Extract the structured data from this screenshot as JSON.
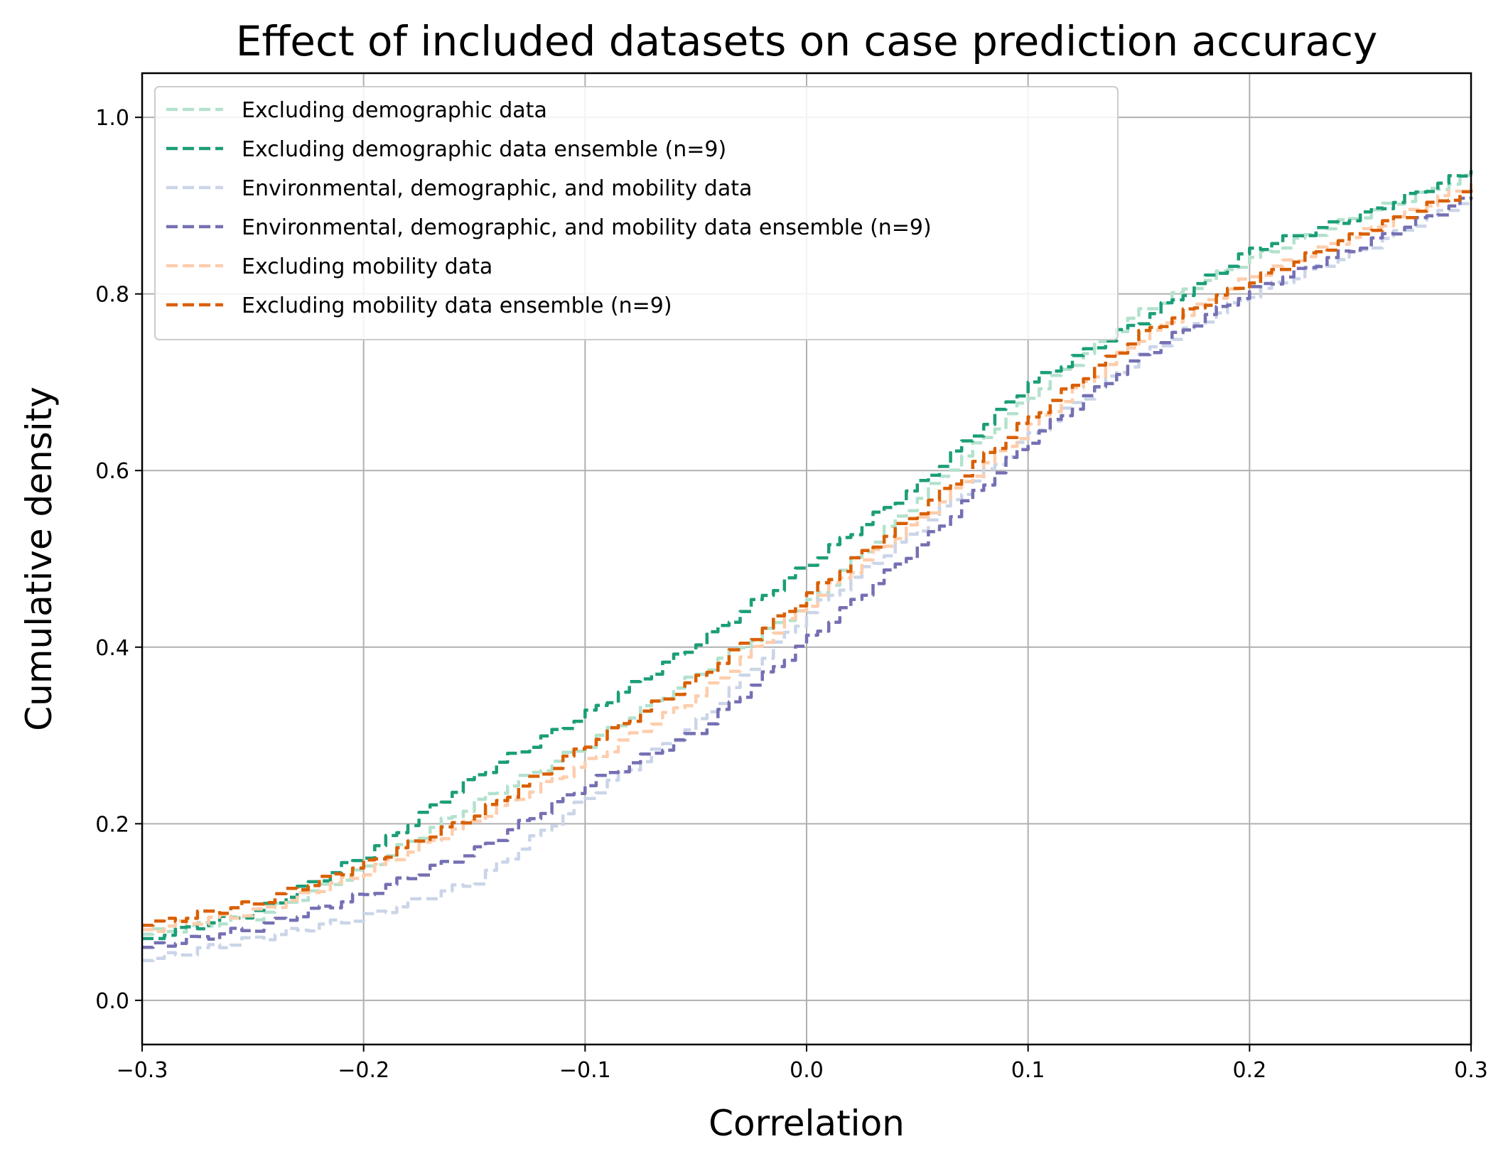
{
  "chart_data": {
    "type": "line",
    "title": "Effect of included datasets on case prediction accuracy",
    "xlabel": "Correlation",
    "ylabel": "Cumulative density",
    "xlim": [
      -0.3,
      0.3
    ],
    "ylim": [
      -0.05,
      1.05
    ],
    "xticks": [
      -0.3,
      -0.2,
      -0.1,
      0.0,
      0.1,
      0.2,
      0.3
    ],
    "xtick_labels": [
      "−0.3",
      "−0.2",
      "−0.1",
      "0.0",
      "0.1",
      "0.2",
      "0.3"
    ],
    "yticks": [
      0.0,
      0.2,
      0.4,
      0.6,
      0.8,
      1.0
    ],
    "ytick_labels": [
      "0.0",
      "0.2",
      "0.4",
      "0.6",
      "0.8",
      "1.0"
    ],
    "grid": true,
    "legend_position": "upper-left",
    "line_style": "dashed",
    "x": [
      -0.3,
      -0.25,
      -0.2,
      -0.15,
      -0.1,
      -0.05,
      0.0,
      0.05,
      0.1,
      0.15,
      0.2,
      0.25,
      0.3
    ],
    "series": [
      {
        "name": "Excluding demographic data",
        "color": "#b3e2cd",
        "values": [
          0.075,
          0.095,
          0.15,
          0.225,
          0.29,
          0.37,
          0.45,
          0.57,
          0.685,
          0.78,
          0.84,
          0.89,
          0.935
        ]
      },
      {
        "name": "Excluding demographic data ensemble (n=9)",
        "color": "#1b9e77",
        "values": [
          0.07,
          0.1,
          0.165,
          0.255,
          0.325,
          0.405,
          0.495,
          0.585,
          0.7,
          0.77,
          0.85,
          0.89,
          0.94
        ]
      },
      {
        "name": "Environmental, demographic, and mobility data",
        "color": "#cbd5e8",
        "values": [
          0.045,
          0.07,
          0.095,
          0.135,
          0.23,
          0.315,
          0.44,
          0.535,
          0.64,
          0.73,
          0.8,
          0.85,
          0.91
        ]
      },
      {
        "name": "Environmental, demographic, and mobility data ensemble (n=9)",
        "color": "#7570b3",
        "values": [
          0.06,
          0.082,
          0.12,
          0.17,
          0.245,
          0.305,
          0.41,
          0.515,
          0.635,
          0.73,
          0.805,
          0.855,
          0.91
        ]
      },
      {
        "name": "Excluding mobility data",
        "color": "#fdcdac",
        "values": [
          0.08,
          0.1,
          0.145,
          0.205,
          0.27,
          0.345,
          0.45,
          0.545,
          0.65,
          0.75,
          0.82,
          0.87,
          0.925
        ]
      },
      {
        "name": "Excluding mobility data ensemble (n=9)",
        "color": "#d95f02",
        "values": [
          0.085,
          0.11,
          0.155,
          0.21,
          0.29,
          0.365,
          0.46,
          0.555,
          0.66,
          0.755,
          0.815,
          0.87,
          0.92
        ]
      }
    ]
  }
}
